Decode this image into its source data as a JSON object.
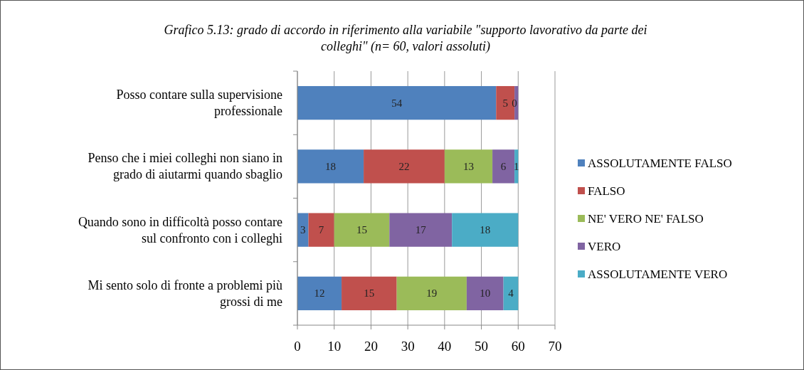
{
  "chart_data": {
    "type": "bar",
    "orientation": "horizontal",
    "stacked": true,
    "title": "Grafico 5.13: grado di accordo in riferimento alla variabile \"supporto lavorativo da parte dei colleghi\" (n= 60, valori assoluti)",
    "categories": [
      "Posso contare sulla supervisione professionale",
      "Penso che i miei colleghi non siano in grado di aiutarmi quando sbaglio",
      "Quando sono in difficoltà posso contare sul confronto con i colleghi",
      "Mi sento solo di fronte a problemi più grossi di me"
    ],
    "series": [
      {
        "name": "ASSOLUTAMENTE FALSO",
        "color": "#4f81bd",
        "values": [
          54,
          18,
          3,
          12
        ],
        "value_labels": [
          "54",
          "18",
          "3",
          "12"
        ]
      },
      {
        "name": "FALSO",
        "color": "#c0504d",
        "values": [
          5,
          22,
          7,
          15
        ],
        "value_labels": [
          "5",
          "22",
          "7",
          "15"
        ]
      },
      {
        "name": "NE' VERO NE' FALSO",
        "color": "#9bbb59",
        "values": [
          0,
          13,
          15,
          19
        ],
        "value_labels": [
          "0",
          "13",
          "15",
          "19"
        ]
      },
      {
        "name": "VERO",
        "color": "#8064a2",
        "values": [
          1,
          6,
          17,
          10
        ],
        "value_labels": [
          null,
          "6",
          "17",
          "10"
        ]
      },
      {
        "name": "ASSOLUTAMENTE VERO",
        "color": "#4bacc6",
        "values": [
          0,
          1,
          18,
          4
        ],
        "value_labels": [
          null,
          "1",
          "18",
          "4"
        ]
      }
    ],
    "xlim": [
      0,
      70
    ],
    "xticks": [
      0,
      10,
      20,
      30,
      40,
      50,
      60,
      70
    ],
    "grid": "x",
    "legend": "right"
  }
}
